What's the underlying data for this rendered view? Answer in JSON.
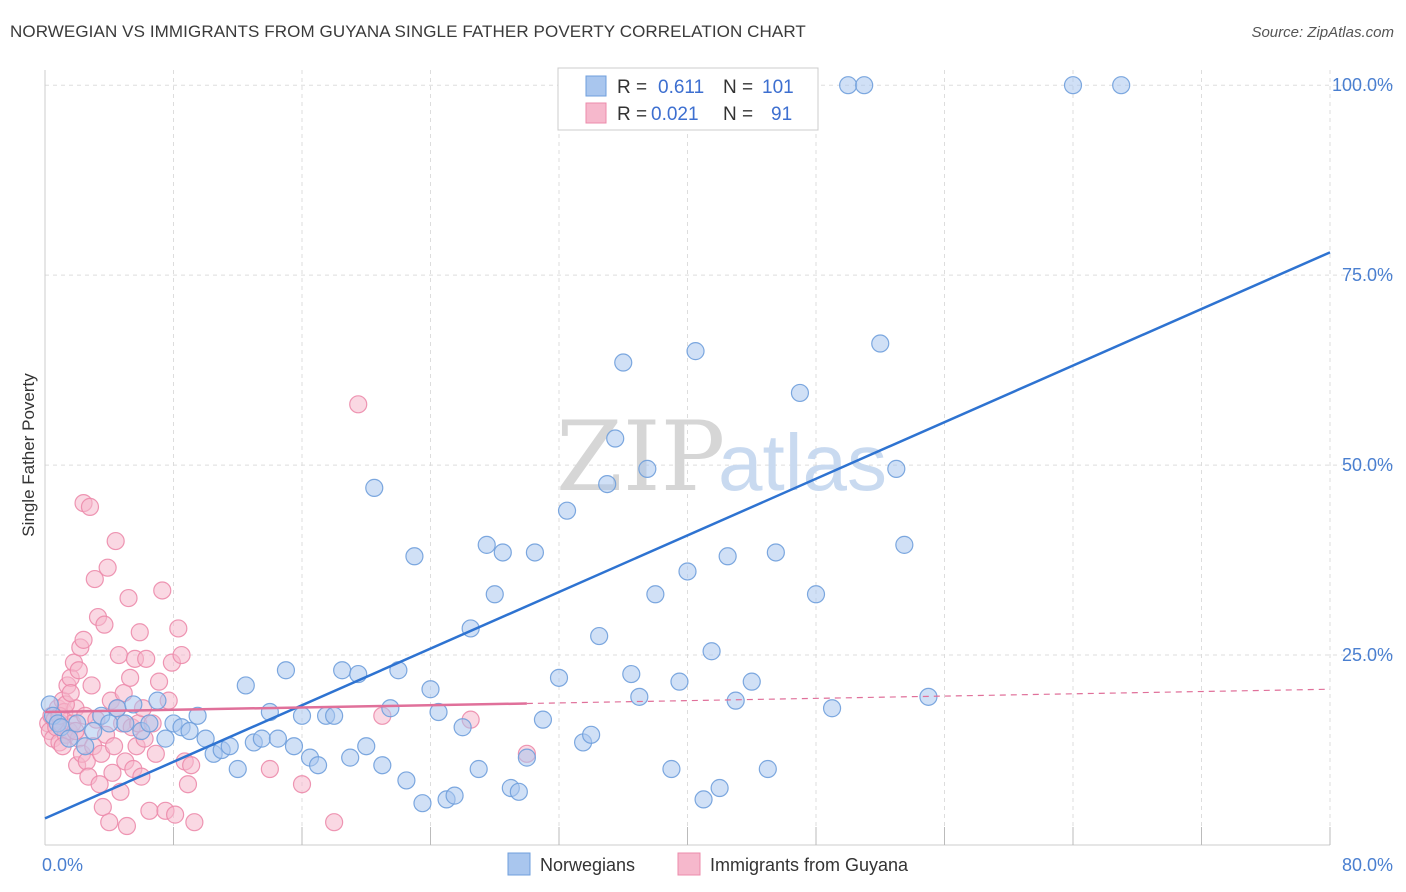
{
  "title": "NORWEGIAN VS IMMIGRANTS FROM GUYANA SINGLE FATHER POVERTY CORRELATION CHART",
  "source": "Source: ZipAtlas.com",
  "watermark": {
    "zip": "ZIP",
    "atlas": "atlas"
  },
  "colors": {
    "norwegians_fill": "#a9c6ee",
    "norwegians_stroke": "#6f9fdc",
    "norwegians_line": "#2e73d1",
    "guyana_fill": "#f6b8cc",
    "guyana_stroke": "#ec8bab",
    "guyana_line": "#e0709a",
    "axis_label": "#4a7fd0",
    "grid": "#dddddd"
  },
  "legend": {
    "rows": [
      {
        "r_label": "R =",
        "r_value": "0.611",
        "n_label": "N =",
        "n_value": "101"
      },
      {
        "r_label": "R =",
        "r_value": "0.021",
        "n_label": "N =",
        "n_value": "91"
      }
    ]
  },
  "bottom_legend": [
    "Norwegians",
    "Immigrants from Guyana"
  ],
  "chart_data": {
    "type": "scatter",
    "xlabel": "",
    "ylabel": "Single Father Poverty",
    "xlim": [
      0,
      80
    ],
    "ylim": [
      0,
      102
    ],
    "x_tick_labels": [
      {
        "value": 0,
        "label": "0.0%"
      },
      {
        "value": 80,
        "label": "80.0%"
      }
    ],
    "y_tick_labels": [
      {
        "value": 25,
        "label": "25.0%"
      },
      {
        "value": 50,
        "label": "50.0%"
      },
      {
        "value": 75,
        "label": "75.0%"
      },
      {
        "value": 100,
        "label": "100.0%"
      }
    ],
    "grid": true,
    "legend_position": "top-center",
    "series": [
      {
        "name": "Norwegians",
        "r": 0.611,
        "n": 101,
        "trend": {
          "x": [
            0,
            80
          ],
          "y": [
            3.5,
            78
          ]
        },
        "points": [
          [
            0.3,
            18.5
          ],
          [
            0.5,
            17
          ],
          [
            0.8,
            16
          ],
          [
            1,
            15.5
          ],
          [
            1.5,
            14
          ],
          [
            2,
            16
          ],
          [
            2.5,
            13
          ],
          [
            3,
            15
          ],
          [
            3.5,
            17
          ],
          [
            4,
            16
          ],
          [
            4.5,
            18
          ],
          [
            5,
            16
          ],
          [
            5.5,
            18.5
          ],
          [
            6,
            15
          ],
          [
            6.5,
            16
          ],
          [
            7,
            19
          ],
          [
            7.5,
            14
          ],
          [
            8,
            16
          ],
          [
            8.5,
            15.5
          ],
          [
            9,
            15
          ],
          [
            9.5,
            17
          ],
          [
            10,
            14
          ],
          [
            10.5,
            12
          ],
          [
            11,
            12.5
          ],
          [
            11.5,
            13
          ],
          [
            12,
            10
          ],
          [
            12.5,
            21
          ],
          [
            13,
            13.5
          ],
          [
            13.5,
            14
          ],
          [
            14,
            17.5
          ],
          [
            14.5,
            14
          ],
          [
            15,
            23
          ],
          [
            15.5,
            13
          ],
          [
            16,
            17
          ],
          [
            16.5,
            11.5
          ],
          [
            17,
            10.5
          ],
          [
            17.5,
            17
          ],
          [
            18,
            17
          ],
          [
            18.5,
            23
          ],
          [
            19,
            11.5
          ],
          [
            19.5,
            22.5
          ],
          [
            20,
            13
          ],
          [
            20.5,
            47
          ],
          [
            21,
            10.5
          ],
          [
            21.5,
            18
          ],
          [
            22,
            23
          ],
          [
            22.5,
            8.5
          ],
          [
            23,
            38
          ],
          [
            23.5,
            5.5
          ],
          [
            24,
            20.5
          ],
          [
            24.5,
            17.5
          ],
          [
            25,
            6
          ],
          [
            25.5,
            6.5
          ],
          [
            26,
            15.5
          ],
          [
            26.5,
            28.5
          ],
          [
            27,
            10
          ],
          [
            27.5,
            39.5
          ],
          [
            28,
            33
          ],
          [
            28.5,
            38.5
          ],
          [
            29,
            7.5
          ],
          [
            29.5,
            7
          ],
          [
            30,
            11.5
          ],
          [
            30.5,
            38.5
          ],
          [
            31,
            16.5
          ],
          [
            32,
            22
          ],
          [
            32.5,
            44
          ],
          [
            33.5,
            13.5
          ],
          [
            34,
            14.5
          ],
          [
            34.5,
            27.5
          ],
          [
            35,
            47.5
          ],
          [
            35.5,
            53.5
          ],
          [
            36,
            63.5
          ],
          [
            36.5,
            22.5
          ],
          [
            37,
            19.5
          ],
          [
            37.5,
            49.5
          ],
          [
            38,
            33
          ],
          [
            39,
            10
          ],
          [
            39.5,
            21.5
          ],
          [
            40,
            36
          ],
          [
            40.5,
            65
          ],
          [
            41,
            6
          ],
          [
            41.5,
            25.5
          ],
          [
            42,
            7.5
          ],
          [
            42.5,
            38
          ],
          [
            43,
            19
          ],
          [
            44,
            21.5
          ],
          [
            45,
            10
          ],
          [
            45.5,
            38.5
          ],
          [
            47,
            59.5
          ],
          [
            48,
            33
          ],
          [
            49,
            18
          ],
          [
            52,
            66
          ],
          [
            53,
            49.5
          ],
          [
            53.5,
            39.5
          ],
          [
            55,
            19.5
          ],
          [
            38.5,
            100
          ],
          [
            45,
            100
          ],
          [
            50,
            100
          ],
          [
            51,
            100
          ],
          [
            64,
            100
          ],
          [
            67,
            100
          ]
        ]
      },
      {
        "name": "Immigrants from Guyana",
        "r": 0.021,
        "n": 91,
        "trend": {
          "x": [
            0,
            80
          ],
          "y": [
            17.5,
            20.5
          ],
          "solid_to_x": 30
        },
        "points": [
          [
            0.2,
            16
          ],
          [
            0.3,
            15
          ],
          [
            0.4,
            17
          ],
          [
            0.5,
            14
          ],
          [
            0.6,
            16.5
          ],
          [
            0.7,
            15.5
          ],
          [
            0.8,
            18
          ],
          [
            0.9,
            13.5
          ],
          [
            1,
            16
          ],
          [
            1.1,
            19
          ],
          [
            1.2,
            17.5
          ],
          [
            1.3,
            14.5
          ],
          [
            1.4,
            21
          ],
          [
            1.5,
            15
          ],
          [
            1.6,
            22
          ],
          [
            1.7,
            16
          ],
          [
            1.8,
            24
          ],
          [
            1.9,
            18
          ],
          [
            2,
            10.5
          ],
          [
            2.1,
            14
          ],
          [
            2.2,
            26
          ],
          [
            2.3,
            12
          ],
          [
            2.4,
            45
          ],
          [
            2.5,
            17
          ],
          [
            2.6,
            11
          ],
          [
            2.7,
            9
          ],
          [
            2.8,
            44.5
          ],
          [
            2.9,
            21
          ],
          [
            3,
            13
          ],
          [
            3.1,
            35
          ],
          [
            3.2,
            16.5
          ],
          [
            3.3,
            30
          ],
          [
            3.4,
            8
          ],
          [
            3.5,
            12
          ],
          [
            3.6,
            5
          ],
          [
            3.7,
            29
          ],
          [
            3.8,
            14.5
          ],
          [
            3.9,
            36.5
          ],
          [
            4,
            3
          ],
          [
            4.1,
            19
          ],
          [
            4.2,
            9.5
          ],
          [
            4.3,
            13
          ],
          [
            4.4,
            40
          ],
          [
            4.5,
            18
          ],
          [
            4.6,
            25
          ],
          [
            4.7,
            7
          ],
          [
            4.8,
            16
          ],
          [
            4.9,
            20
          ],
          [
            5,
            11
          ],
          [
            5.1,
            2.5
          ],
          [
            5.2,
            32.5
          ],
          [
            5.3,
            22
          ],
          [
            5.4,
            15.5
          ],
          [
            5.5,
            10
          ],
          [
            5.6,
            24.5
          ],
          [
            5.7,
            13
          ],
          [
            5.8,
            16
          ],
          [
            5.9,
            28
          ],
          [
            6,
            9
          ],
          [
            6.1,
            18
          ],
          [
            6.2,
            14
          ],
          [
            6.3,
            24.5
          ],
          [
            6.5,
            4.5
          ],
          [
            6.7,
            16
          ],
          [
            6.9,
            12
          ],
          [
            7.1,
            21.5
          ],
          [
            7.3,
            33.5
          ],
          [
            7.5,
            4.5
          ],
          [
            7.7,
            19
          ],
          [
            7.9,
            24
          ],
          [
            8.1,
            4
          ],
          [
            8.3,
            28.5
          ],
          [
            8.5,
            25
          ],
          [
            8.7,
            11
          ],
          [
            8.9,
            8
          ],
          [
            9.1,
            10.5
          ],
          [
            9.3,
            3
          ],
          [
            1.1,
            13
          ],
          [
            0.9,
            17
          ],
          [
            1.3,
            18.5
          ],
          [
            1.6,
            20
          ],
          [
            2.1,
            23
          ],
          [
            2.4,
            27
          ],
          [
            1.9,
            15
          ],
          [
            14,
            10
          ],
          [
            16,
            8
          ],
          [
            18,
            3
          ],
          [
            19.5,
            58
          ],
          [
            21,
            17
          ],
          [
            26.5,
            16.5
          ],
          [
            30,
            12
          ]
        ]
      }
    ]
  }
}
